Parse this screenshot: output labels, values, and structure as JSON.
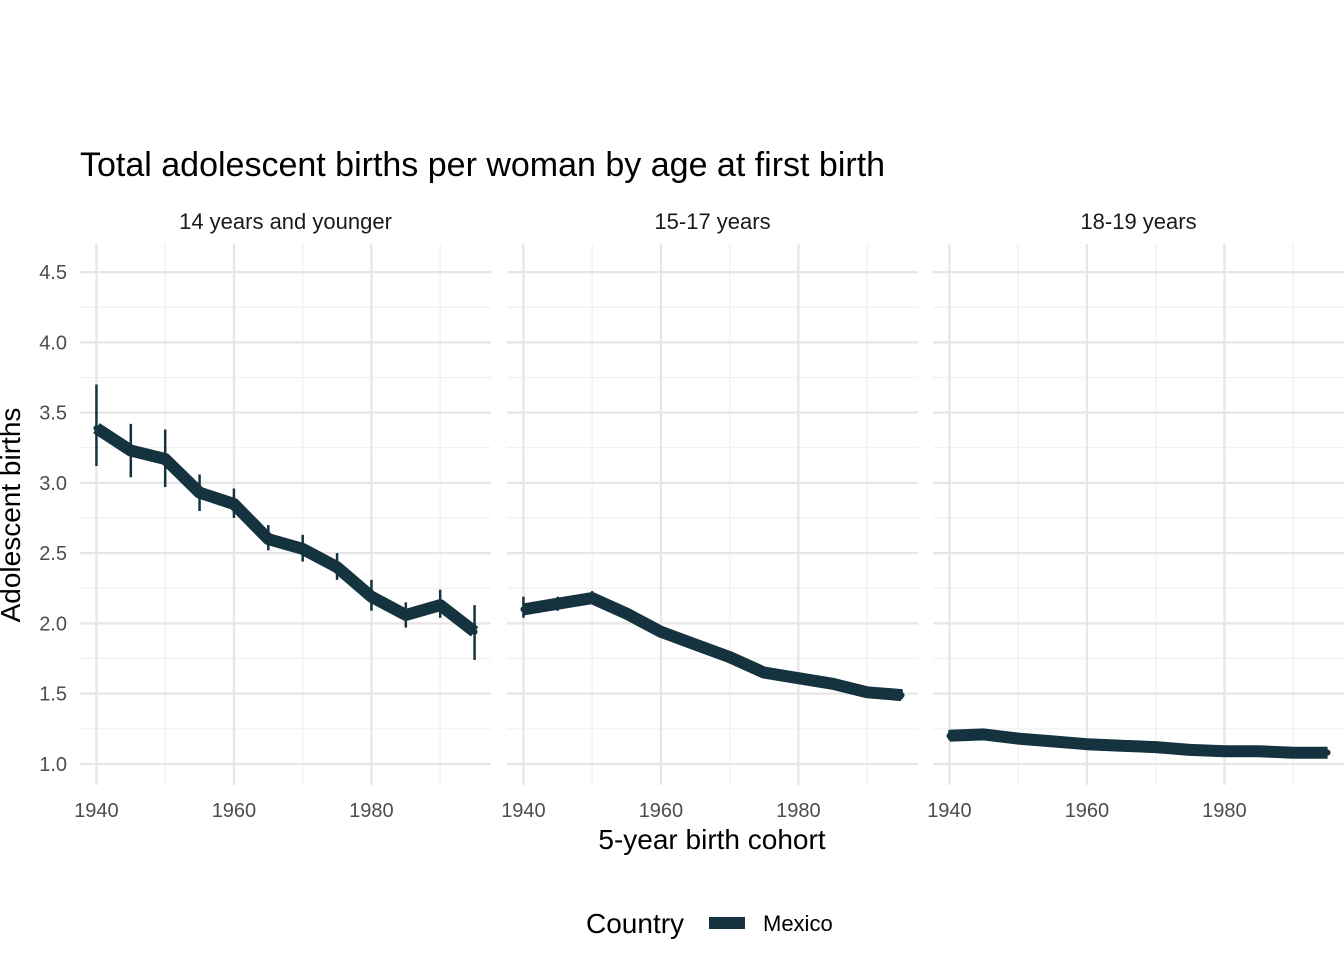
{
  "chart_data": {
    "type": "line",
    "title": "Total adolescent births per woman by age at first birth",
    "xlabel": "5-year birth cohort",
    "ylabel": "Adolescent births",
    "xlim": [
      1940,
      1995
    ],
    "ylim": [
      0.85,
      4.7
    ],
    "x_ticks": [
      1940,
      1960,
      1980
    ],
    "x_tick_labels": [
      "1940",
      "1960",
      "1980"
    ],
    "y_ticks": [
      1.0,
      1.5,
      2.0,
      2.5,
      3.0,
      3.5,
      4.0,
      4.5
    ],
    "y_tick_labels": [
      "1.0",
      "1.5",
      "2.0",
      "2.5",
      "3.0",
      "3.5",
      "4.0",
      "4.5"
    ],
    "grid": true,
    "legend": {
      "title": "Country",
      "position": "bottom",
      "entries": [
        {
          "label": "Mexico",
          "color": "#15323f"
        }
      ]
    },
    "series_color": "#15323f",
    "panels": [
      {
        "label": "14 years and younger",
        "series": [
          {
            "name": "Mexico",
            "x": [
              1940,
              1945,
              1950,
              1955,
              1960,
              1965,
              1970,
              1975,
              1980,
              1985,
              1990,
              1995
            ],
            "values": [
              3.39,
              3.23,
              3.17,
              2.93,
              2.85,
              2.6,
              2.53,
              2.4,
              2.19,
              2.06,
              2.13,
              1.94
            ],
            "ci_low": [
              3.12,
              3.04,
              2.97,
              2.8,
              2.75,
              2.52,
              2.44,
              2.31,
              2.09,
              1.97,
              2.04,
              1.74
            ],
            "ci_high": [
              3.7,
              3.42,
              3.38,
              3.06,
              2.96,
              2.7,
              2.63,
              2.5,
              2.31,
              2.15,
              2.24,
              2.13
            ]
          }
        ]
      },
      {
        "label": "15-17 years",
        "series": [
          {
            "name": "Mexico",
            "x": [
              1940,
              1945,
              1950,
              1955,
              1960,
              1965,
              1970,
              1975,
              1980,
              1985,
              1990,
              1995
            ],
            "values": [
              2.1,
              2.14,
              2.18,
              2.07,
              1.94,
              1.85,
              1.76,
              1.65,
              1.61,
              1.57,
              1.51,
              1.49
            ],
            "ci_low": [
              2.04,
              2.09,
              2.14,
              2.05,
              1.93,
              1.84,
              1.75,
              1.64,
              1.6,
              1.56,
              1.5,
              1.46
            ],
            "ci_high": [
              2.19,
              2.19,
              2.23,
              2.09,
              1.95,
              1.86,
              1.77,
              1.66,
              1.62,
              1.58,
              1.52,
              1.53
            ]
          }
        ]
      },
      {
        "label": "18-19 years",
        "series": [
          {
            "name": "Mexico",
            "x": [
              1940,
              1945,
              1950,
              1955,
              1960,
              1965,
              1970,
              1975,
              1980,
              1985,
              1990,
              1995
            ],
            "values": [
              1.2,
              1.21,
              1.18,
              1.16,
              1.14,
              1.13,
              1.12,
              1.1,
              1.09,
              1.09,
              1.08,
              1.08
            ],
            "ci_low": [
              1.17,
              1.19,
              1.17,
              1.15,
              1.13,
              1.12,
              1.11,
              1.09,
              1.08,
              1.08,
              1.07,
              1.06
            ],
            "ci_high": [
              1.24,
              1.23,
              1.19,
              1.17,
              1.15,
              1.14,
              1.13,
              1.11,
              1.1,
              1.1,
              1.09,
              1.1
            ]
          }
        ]
      }
    ]
  }
}
